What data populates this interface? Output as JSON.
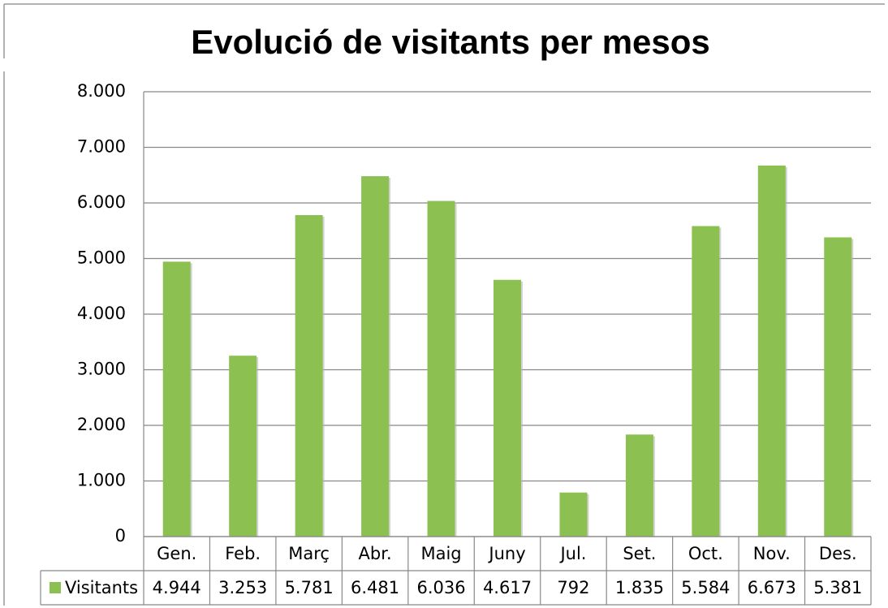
{
  "chart_data": {
    "type": "bar",
    "title": "Evolució de visitants per mesos",
    "categories": [
      "Gen.",
      "Feb.",
      "Març",
      "Abr.",
      "Maig",
      "Juny",
      "Jul.",
      "Set.",
      "Oct.",
      "Nov.",
      "Des."
    ],
    "series": [
      {
        "name": "Visitants",
        "color": "#8cc152",
        "values": [
          4944,
          3253,
          5781,
          6481,
          6036,
          4617,
          792,
          1835,
          5584,
          6673,
          5381
        ],
        "value_labels": [
          "4.944",
          "3.253",
          "5.781",
          "6.481",
          "6.036",
          "4.617",
          "792",
          "1.835",
          "5.584",
          "6.673",
          "5.381"
        ]
      }
    ],
    "ylim": [
      0,
      8000
    ],
    "yticks": [
      0,
      {
        "value": 1000,
        "label": "1.000"
      },
      {
        "value": 2000,
        "label": "2.000"
      },
      {
        "value": 3000,
        "label": "3.000"
      },
      {
        "value": 4000,
        "label": "4.000"
      },
      {
        "value": 5000,
        "label": "5.000"
      },
      {
        "value": 6000,
        "label": "6.000"
      },
      {
        "value": 7000,
        "label": "7.000"
      },
      {
        "value": 8000,
        "label": "8.000"
      }
    ],
    "grid": true
  }
}
